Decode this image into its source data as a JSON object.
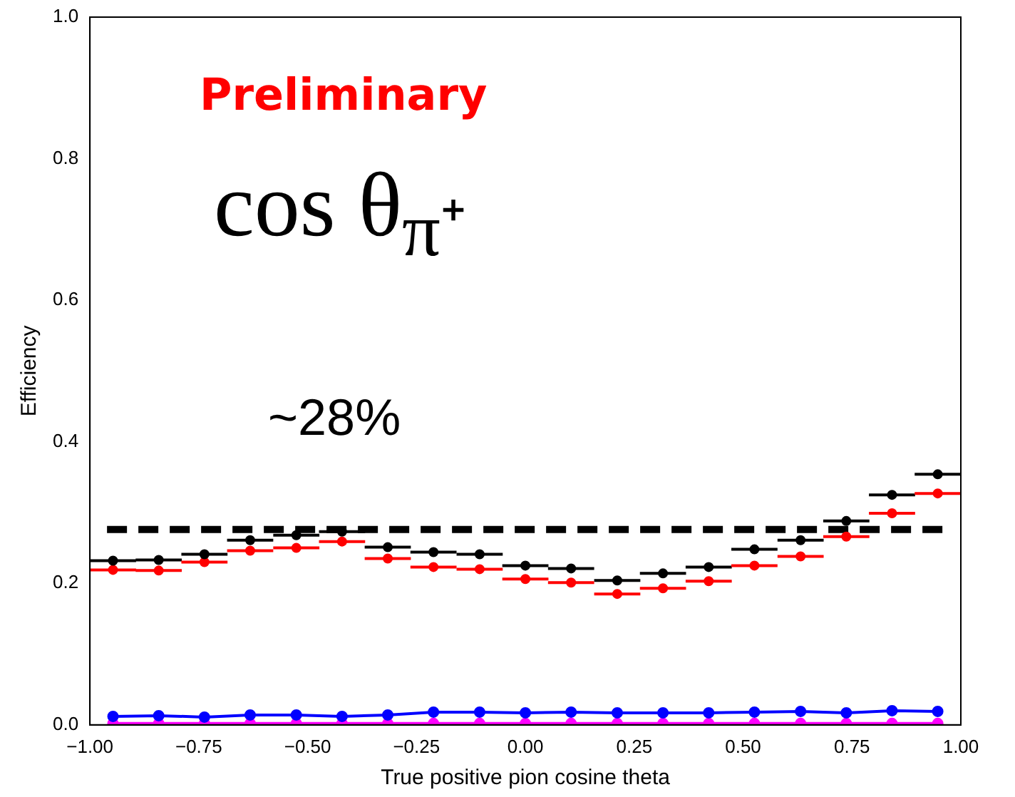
{
  "chart_data": {
    "type": "scatter",
    "xlabel": "True positive pion cosine theta",
    "ylabel": "Efficiency",
    "x": [
      -0.947,
      -0.842,
      -0.737,
      -0.632,
      -0.526,
      -0.421,
      -0.316,
      -0.211,
      -0.105,
      0.0,
      0.105,
      0.211,
      0.316,
      0.421,
      0.526,
      0.632,
      0.737,
      0.842,
      0.947
    ],
    "series": [
      {
        "color": "#000000",
        "values": [
          0.232,
          0.233,
          0.241,
          0.261,
          0.268,
          0.273,
          0.251,
          0.244,
          0.241,
          0.225,
          0.221,
          0.204,
          0.214,
          0.223,
          0.248,
          0.261,
          0.288,
          0.325,
          0.354
        ],
        "xerrors": [
          0.053,
          0.053,
          0.053,
          0.053,
          0.053,
          0.053,
          0.053,
          0.053,
          0.053,
          0.053,
          0.053,
          0.053,
          0.053,
          0.053,
          0.053,
          0.053,
          0.053,
          0.053,
          0.053
        ]
      },
      {
        "color": "#ff0000",
        "values": [
          0.219,
          0.218,
          0.23,
          0.246,
          0.25,
          0.259,
          0.235,
          0.223,
          0.22,
          0.206,
          0.201,
          0.185,
          0.193,
          0.203,
          0.225,
          0.238,
          0.266,
          0.299,
          0.327
        ],
        "xerrors": [
          0.053,
          0.053,
          0.053,
          0.053,
          0.053,
          0.053,
          0.053,
          0.053,
          0.053,
          0.053,
          0.053,
          0.053,
          0.053,
          0.053,
          0.053,
          0.053,
          0.053,
          0.053,
          0.053
        ]
      },
      {
        "type": "line",
        "color": "#0000ff",
        "values": [
          0.012,
          0.013,
          0.011,
          0.014,
          0.014,
          0.012,
          0.014,
          0.018,
          0.018,
          0.017,
          0.018,
          0.017,
          0.017,
          0.017,
          0.018,
          0.019,
          0.017,
          0.02,
          0.019
        ]
      },
      {
        "type": "line",
        "color": "#ff00ff",
        "values": [
          0.002,
          0.002,
          0.002,
          0.002,
          0.002,
          0.002,
          0.002,
          0.002,
          0.002,
          0.002,
          0.002,
          0.002,
          0.002,
          0.002,
          0.002,
          0.002,
          0.002,
          0.002,
          0.002
        ]
      }
    ],
    "marker": "circle",
    "ref_lines": [
      {
        "axis": "y",
        "value": 0.276,
        "color": "#000000",
        "line_style": "dashed"
      }
    ],
    "annotations": [
      "Preliminary",
      "cos θ$_{π⁺}$",
      "~28%"
    ],
    "xlim": [
      -1.0,
      1.0
    ],
    "xticks": [
      {
        "value": -1,
        "label": "−1.00"
      },
      {
        "value": -0.75,
        "label": "−0.75"
      },
      {
        "value": -0.5,
        "label": "−0.50"
      },
      {
        "value": -0.25,
        "label": "−0.25"
      },
      {
        "value": 0,
        "label": "0.00"
      },
      {
        "value": 0.25,
        "label": "0.25"
      },
      {
        "value": 0.5,
        "label": "0.50"
      },
      {
        "value": 0.75,
        "label": "0.75"
      },
      {
        "value": 1,
        "label": "1.00"
      }
    ],
    "ylim": [
      0.0,
      1.0
    ],
    "yticks": [
      {
        "value": 0,
        "label": "0.0"
      },
      {
        "value": 0.2,
        "label": "0.2"
      },
      {
        "value": 0.4,
        "label": "0.4"
      },
      {
        "value": 0.6,
        "label": "0.6"
      },
      {
        "value": 0.8,
        "label": "0.8"
      },
      {
        "value": 1,
        "label": "1.0"
      }
    ],
    "grid": false,
    "legend": false
  }
}
